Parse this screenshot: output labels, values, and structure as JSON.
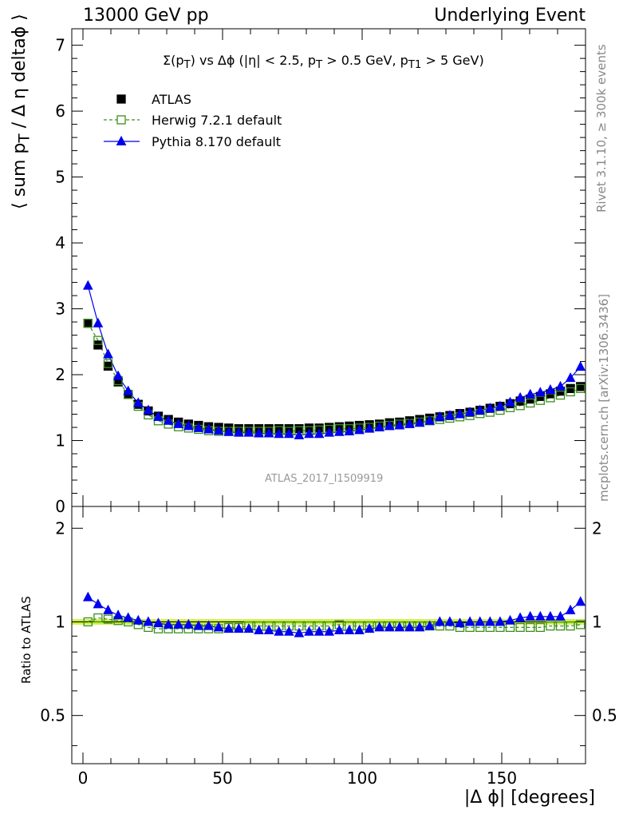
{
  "header": {
    "left": "13000 GeV pp",
    "right": "Underlying Event"
  },
  "side_labels": {
    "rivet": "Rivet 3.1.10, ≥ 300k events",
    "mcplots": "mcplots.cern.ch [arXiv:1306.3436]"
  },
  "analysis_id": "ATLAS_2017_I1509919",
  "plot_title": "Σ(p_T) vs Δϕ (|η| < 2.5, p_T > 0.5 GeV, p_T1 > 5 GeV)",
  "colors": {
    "atlas": "#000000",
    "herwig": "#3a8f1c",
    "pythia": "#0000ee",
    "band": "#ccee44"
  },
  "chart_data": [
    {
      "type": "line",
      "title": "Σ(p_T) vs Δϕ (|η| < 2.5, p_T > 0.5 GeV, p_T1 > 5 GeV)",
      "ylabel": "⟨ sum p_T / Δ η deltaϕ ⟩",
      "xlabel": "|Δ ϕ| [degrees]",
      "xlim": [
        -4,
        180
      ],
      "ylim": [
        0,
        7.25
      ],
      "x_ticks": [
        "0",
        "50",
        "100",
        "150"
      ],
      "y_ticks": [
        "0",
        "1",
        "2",
        "3",
        "4",
        "5",
        "6",
        "7"
      ],
      "legend": "top-left",
      "x": [
        1.8,
        5.4,
        9,
        12.6,
        16.2,
        19.8,
        23.4,
        27,
        30.6,
        34.2,
        37.8,
        41.4,
        45,
        48.6,
        52.2,
        55.8,
        59.4,
        63,
        66.6,
        70.2,
        73.8,
        77.4,
        81,
        84.6,
        88.2,
        91.8,
        95.4,
        99,
        102.6,
        106.2,
        109.8,
        113.4,
        117,
        120.6,
        124.2,
        127.8,
        131.4,
        135,
        138.6,
        142.2,
        145.8,
        149.4,
        153,
        156.6,
        160.2,
        163.8,
        167.4,
        171,
        174.6,
        178.2
      ],
      "series": [
        {
          "name": "ATLAS",
          "values": [
            2.78,
            2.45,
            2.13,
            1.89,
            1.7,
            1.55,
            1.45,
            1.37,
            1.32,
            1.28,
            1.25,
            1.23,
            1.21,
            1.2,
            1.19,
            1.18,
            1.18,
            1.18,
            1.18,
            1.18,
            1.18,
            1.18,
            1.19,
            1.19,
            1.2,
            1.21,
            1.22,
            1.23,
            1.24,
            1.25,
            1.27,
            1.28,
            1.3,
            1.32,
            1.34,
            1.36,
            1.38,
            1.41,
            1.43,
            1.46,
            1.49,
            1.52,
            1.56,
            1.6,
            1.63,
            1.67,
            1.71,
            1.75,
            1.79,
            1.82
          ]
        },
        {
          "name": "Herwig 7.2.1 default",
          "values": [
            2.78,
            2.52,
            2.17,
            1.91,
            1.7,
            1.52,
            1.39,
            1.3,
            1.25,
            1.21,
            1.19,
            1.17,
            1.15,
            1.14,
            1.14,
            1.14,
            1.14,
            1.14,
            1.14,
            1.15,
            1.14,
            1.15,
            1.15,
            1.16,
            1.17,
            1.18,
            1.18,
            1.19,
            1.2,
            1.22,
            1.23,
            1.25,
            1.26,
            1.28,
            1.3,
            1.32,
            1.34,
            1.36,
            1.38,
            1.41,
            1.43,
            1.46,
            1.5,
            1.53,
            1.57,
            1.61,
            1.65,
            1.69,
            1.74,
            1.79
          ]
        },
        {
          "name": "Pythia 8.170 default",
          "values": [
            3.35,
            2.78,
            2.31,
            1.98,
            1.75,
            1.57,
            1.46,
            1.36,
            1.3,
            1.25,
            1.22,
            1.19,
            1.17,
            1.15,
            1.13,
            1.12,
            1.12,
            1.11,
            1.11,
            1.1,
            1.1,
            1.08,
            1.1,
            1.1,
            1.12,
            1.13,
            1.14,
            1.16,
            1.18,
            1.2,
            1.22,
            1.23,
            1.25,
            1.27,
            1.3,
            1.36,
            1.38,
            1.4,
            1.43,
            1.46,
            1.49,
            1.52,
            1.58,
            1.65,
            1.7,
            1.73,
            1.77,
            1.82,
            1.95,
            2.12
          ]
        }
      ]
    },
    {
      "type": "line",
      "title": "",
      "ylabel": "Ratio to ATLAS",
      "xlabel": "|Δ ϕ| [degrees]",
      "xlim": [
        -4,
        180
      ],
      "ylim": [
        0.35,
        2.35
      ],
      "y_scale": "log",
      "x_ticks": [
        "0",
        "50",
        "100",
        "150"
      ],
      "y_ticks": [
        "0.5",
        "1",
        "2"
      ],
      "reference_band": [
        0.98,
        1.02
      ],
      "x": [
        1.8,
        5.4,
        9,
        12.6,
        16.2,
        19.8,
        23.4,
        27,
        30.6,
        34.2,
        37.8,
        41.4,
        45,
        48.6,
        52.2,
        55.8,
        59.4,
        63,
        66.6,
        70.2,
        73.8,
        77.4,
        81,
        84.6,
        88.2,
        91.8,
        95.4,
        99,
        102.6,
        106.2,
        109.8,
        113.4,
        117,
        120.6,
        124.2,
        127.8,
        131.4,
        135,
        138.6,
        142.2,
        145.8,
        149.4,
        153,
        156.6,
        160.2,
        163.8,
        167.4,
        171,
        174.6,
        178.2
      ],
      "series": [
        {
          "name": "Herwig 7.2.1 default",
          "values": [
            1.0,
            1.03,
            1.02,
            1.01,
            1.0,
            0.98,
            0.96,
            0.95,
            0.95,
            0.95,
            0.95,
            0.95,
            0.95,
            0.95,
            0.96,
            0.96,
            0.97,
            0.97,
            0.97,
            0.97,
            0.97,
            0.97,
            0.97,
            0.97,
            0.97,
            0.98,
            0.97,
            0.97,
            0.97,
            0.97,
            0.97,
            0.97,
            0.97,
            0.97,
            0.97,
            0.97,
            0.97,
            0.96,
            0.96,
            0.96,
            0.96,
            0.96,
            0.96,
            0.96,
            0.96,
            0.96,
            0.97,
            0.97,
            0.97,
            0.98
          ]
        },
        {
          "name": "Pythia 8.170 default",
          "values": [
            1.2,
            1.14,
            1.09,
            1.05,
            1.03,
            1.01,
            1.0,
            0.99,
            0.98,
            0.98,
            0.98,
            0.97,
            0.97,
            0.96,
            0.95,
            0.95,
            0.95,
            0.94,
            0.94,
            0.93,
            0.93,
            0.92,
            0.93,
            0.93,
            0.93,
            0.94,
            0.94,
            0.94,
            0.95,
            0.96,
            0.96,
            0.96,
            0.96,
            0.96,
            0.97,
            1.0,
            1.0,
            0.99,
            1.0,
            1.0,
            1.0,
            1.0,
            1.01,
            1.03,
            1.04,
            1.04,
            1.04,
            1.04,
            1.09,
            1.16
          ]
        }
      ]
    }
  ]
}
